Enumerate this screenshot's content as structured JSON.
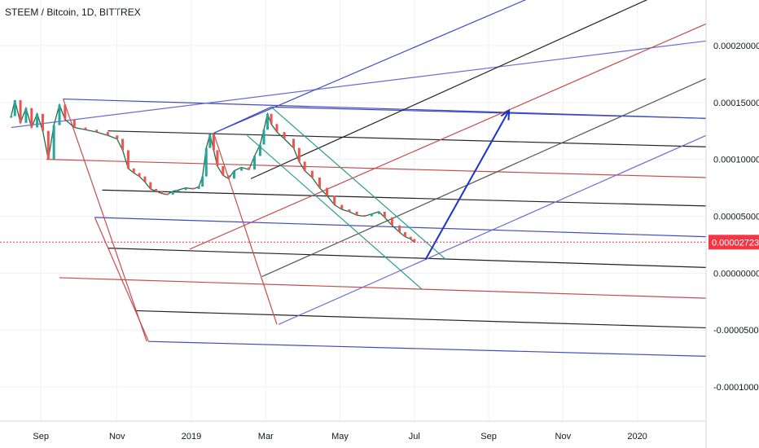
{
  "chart_data": {
    "type": "line",
    "title": "STEEM / Bitcoin, 1D, BITTREX",
    "symbol": "STEEM / Bitcoin",
    "interval": "1D",
    "exchange": "BITTREX",
    "ylim": [
      -0.00013,
      0.00024
    ],
    "x_ticks": [
      {
        "label": "Sep",
        "t": 0.8
      },
      {
        "label": "Nov",
        "t": 2.85
      },
      {
        "label": "2019",
        "t": 4.85
      },
      {
        "label": "Mar",
        "t": 6.85
      },
      {
        "label": "May",
        "t": 8.85
      },
      {
        "label": "Jul",
        "t": 10.85
      },
      {
        "label": "Sep",
        "t": 12.85
      },
      {
        "label": "Nov",
        "t": 14.85
      },
      {
        "label": "2020",
        "t": 16.85
      }
    ],
    "y_ticks": [
      {
        "label": "0.00020000",
        "v": 0.0002
      },
      {
        "label": "0.00015000",
        "v": 0.00015
      },
      {
        "label": "0.00010000",
        "v": 0.0001
      },
      {
        "label": "0.00005000",
        "v": 5e-05
      },
      {
        "label": "0.00000000",
        "v": 0.0
      },
      {
        "label": "-0.00005000",
        "v": -5e-05
      },
      {
        "label": "-0.00010000",
        "v": -0.0001
      }
    ],
    "last_price": {
      "label": "0.00002723",
      "value": 2.723e-05,
      "color": "#f23645"
    },
    "series": [
      {
        "values": [
          [
            0.0,
            0.000138
          ],
          [
            0.1,
            0.000152
          ],
          [
            0.25,
            0.000132
          ],
          [
            0.4,
            0.000145
          ],
          [
            0.55,
            0.000128
          ],
          [
            0.7,
            0.00014
          ],
          [
            0.85,
            0.000125
          ],
          [
            1.0,
            0.0001
          ],
          [
            1.15,
            0.00013
          ],
          [
            1.3,
            0.000148
          ],
          [
            1.45,
            0.000135
          ],
          [
            1.7,
            0.000128
          ],
          [
            2.0,
            0.000126
          ],
          [
            2.3,
            0.000124
          ],
          [
            2.6,
            0.000121
          ],
          [
            2.85,
            0.000118
          ],
          [
            3.0,
            0.000108
          ],
          [
            3.15,
            9.2e-05
          ],
          [
            3.3,
            8.8e-05
          ],
          [
            3.45,
            8.5e-05
          ],
          [
            3.6,
            8e-05
          ],
          [
            3.75,
            7.4e-05
          ],
          [
            3.9,
            7.2e-05
          ],
          [
            4.05,
            7e-05
          ],
          [
            4.2,
            6.9e-05
          ],
          [
            4.35,
            7.2e-05
          ],
          [
            4.5,
            7.3e-05
          ],
          [
            4.7,
            7.5e-05
          ],
          [
            4.9,
            7.4e-05
          ],
          [
            5.05,
            7.6e-05
          ],
          [
            5.15,
            8.5e-05
          ],
          [
            5.25,
            0.00011
          ],
          [
            5.35,
            0.000122
          ],
          [
            5.45,
            0.000108
          ],
          [
            5.55,
            9.4e-05
          ],
          [
            5.7,
            8.6e-05
          ],
          [
            5.85,
            8.3e-05
          ],
          [
            6.0,
            9e-05
          ],
          [
            6.2,
            9.3e-05
          ],
          [
            6.4,
            9.1e-05
          ],
          [
            6.55,
            0.000103
          ],
          [
            6.7,
            0.000113
          ],
          [
            6.8,
            0.000126
          ],
          [
            6.9,
            0.00014
          ],
          [
            7.0,
            0.000131
          ],
          [
            7.15,
            0.000124
          ],
          [
            7.35,
            0.000118
          ],
          [
            7.6,
            0.00011
          ],
          [
            7.75,
            9.8e-05
          ],
          [
            7.9,
            9e-05
          ],
          [
            8.1,
            8.4e-05
          ],
          [
            8.3,
            7.5e-05
          ],
          [
            8.5,
            6.8e-05
          ],
          [
            8.7,
            6e-05
          ],
          [
            8.9,
            5.6e-05
          ],
          [
            9.1,
            5.4e-05
          ],
          [
            9.3,
            5.1e-05
          ],
          [
            9.5,
            5e-05
          ],
          [
            9.7,
            5.2e-05
          ],
          [
            9.9,
            5.4e-05
          ],
          [
            10.05,
            4.9e-05
          ],
          [
            10.25,
            4.2e-05
          ],
          [
            10.45,
            3.6e-05
          ],
          [
            10.6,
            3.2e-05
          ],
          [
            10.75,
            3e-05
          ],
          [
            10.85,
            2.7e-05
          ]
        ]
      }
    ],
    "drawn_lines": [
      {
        "color": "#3f4bbf",
        "points": [
          [
            1.4,
            0.000153
          ],
          [
            18.7,
            0.000136
          ]
        ]
      },
      {
        "color": "#222222",
        "points": [
          [
            2.6,
            0.000125
          ],
          [
            18.7,
            0.000111
          ]
        ]
      },
      {
        "color": "#c84b4b",
        "points": [
          [
            0.95,
            0.0001
          ],
          [
            18.7,
            8.4e-05
          ]
        ]
      },
      {
        "color": "#222222",
        "points": [
          [
            2.45,
            7.3e-05
          ],
          [
            18.7,
            5.9e-05
          ]
        ]
      },
      {
        "color": "#3f4bbf",
        "points": [
          [
            2.25,
            4.9e-05
          ],
          [
            18.7,
            3.2e-05
          ]
        ]
      },
      {
        "color": "#222222",
        "points": [
          [
            2.6,
            2.2e-05
          ],
          [
            18.7,
            5e-06
          ]
        ]
      },
      {
        "color": "#c84b4b",
        "points": [
          [
            1.3,
            -4e-06
          ],
          [
            18.7,
            -2.2e-05
          ]
        ]
      },
      {
        "color": "#222222",
        "points": [
          [
            3.35,
            -3.3e-05
          ],
          [
            18.7,
            -4.8e-05
          ]
        ]
      },
      {
        "color": "#3f4bbf",
        "points": [
          [
            3.7,
            -6e-05
          ],
          [
            18.7,
            -7.3e-05
          ]
        ]
      },
      {
        "color": "#6b6bd6",
        "points": [
          [
            0.0,
            0.000128
          ],
          [
            18.7,
            0.000204
          ]
        ]
      },
      {
        "color": "#3f4bbf",
        "points": [
          [
            5.45,
            0.000123
          ],
          [
            13.9,
            0.000241
          ]
        ]
      },
      {
        "color": "#3f4bbf",
        "points": [
          [
            5.45,
            0.000123
          ],
          [
            7.0,
            0.000146
          ]
        ]
      },
      {
        "color": "#3f4bbf",
        "points": [
          [
            7.0,
            0.000146
          ],
          [
            18.7,
            0.000136
          ]
        ]
      },
      {
        "color": "#222222",
        "points": [
          [
            6.45,
            8.3e-05
          ],
          [
            17.3,
            0.000243
          ]
        ]
      },
      {
        "color": "#c84b4b",
        "points": [
          [
            4.8,
            2.1e-05
          ],
          [
            18.7,
            0.000219
          ]
        ]
      },
      {
        "color": "#6b6bd6",
        "points": [
          [
            7.2,
            -4.5e-05
          ],
          [
            18.7,
            0.000121
          ]
        ]
      },
      {
        "color": "#555555",
        "points": [
          [
            6.75,
            -3e-06
          ],
          [
            18.7,
            0.000171
          ]
        ]
      },
      {
        "color": "#c84b4b",
        "points": [
          [
            1.4,
            0.000153
          ],
          [
            3.65,
            -6e-05
          ]
        ]
      },
      {
        "color": "#c84b4b",
        "points": [
          [
            5.45,
            0.000123
          ],
          [
            7.15,
            -4.5e-05
          ]
        ]
      },
      {
        "color": "#2a9d8f",
        "points": [
          [
            7.0,
            0.000146
          ],
          [
            11.7,
            1.2e-05
          ]
        ]
      },
      {
        "color": "#2a9d8f",
        "points": [
          [
            6.35,
            0.000121
          ],
          [
            11.05,
            -1.4e-05
          ]
        ]
      },
      {
        "color": "#c84b4b",
        "points": [
          [
            2.25,
            4.9e-05
          ],
          [
            3.7,
            -6e-05
          ]
        ]
      }
    ],
    "arrow": {
      "color": "#1a33c7",
      "from": [
        11.15,
        1.2e-05
      ],
      "to": [
        13.4,
        0.000143
      ]
    },
    "grid": true,
    "legend": "none"
  }
}
